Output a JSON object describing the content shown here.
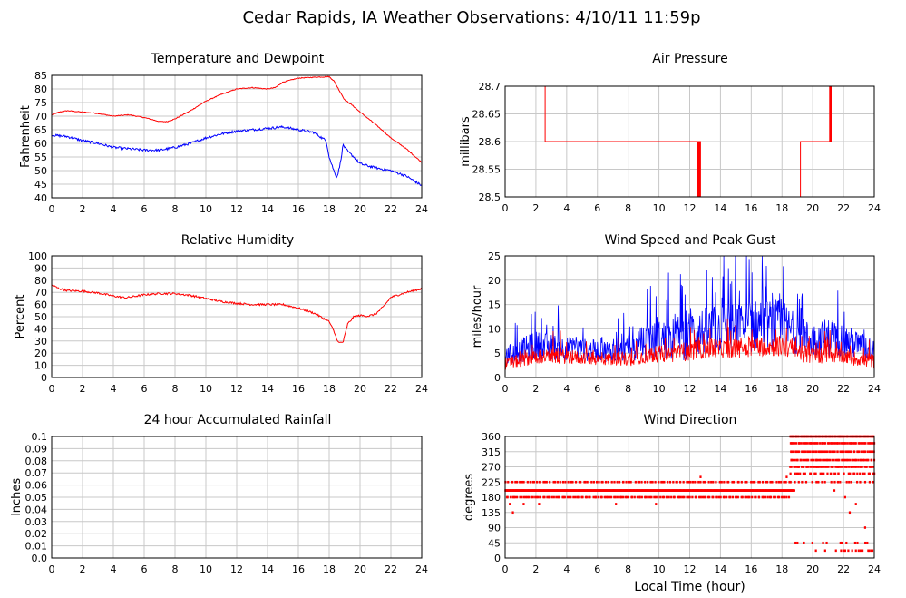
{
  "page": {
    "title": "Cedar Rapids, IA Weather Observations: 4/10/11 11:59p"
  },
  "colors": {
    "red": "#ff0000",
    "blue": "#0000ff",
    "grid": "#c8c8c8"
  },
  "chart_data": [
    {
      "id": "temp",
      "type": "line",
      "title": "Temperature and Dewpoint",
      "xlabel": "",
      "ylabel": "Fahrenheit",
      "xlim": [
        0,
        24
      ],
      "ylim": [
        40,
        85
      ],
      "xticks": [
        "0",
        "2",
        "4",
        "6",
        "8",
        "10",
        "12",
        "14",
        "16",
        "18",
        "20",
        "22",
        "24"
      ],
      "yticks": [
        "40",
        "45",
        "50",
        "55",
        "60",
        "65",
        "70",
        "75",
        "80",
        "85"
      ],
      "grid": true,
      "series": [
        {
          "color": "#ff0000",
          "noise": 0.15,
          "x": [
            0,
            0.5,
            1,
            2,
            3,
            4,
            5,
            6,
            7,
            7.5,
            8,
            9,
            10,
            11,
            12,
            13,
            14,
            14.5,
            15,
            16,
            17,
            18,
            18.3,
            18.7,
            19,
            19.5,
            20,
            21,
            22,
            23,
            24
          ],
          "y": [
            70.5,
            71.5,
            72,
            71.5,
            71,
            70,
            70.5,
            69.5,
            68,
            68,
            69,
            72,
            75.5,
            78,
            80,
            80.5,
            80,
            80.5,
            82.5,
            84,
            84.3,
            84.5,
            83,
            79,
            76,
            74,
            71.5,
            67,
            62,
            58,
            53
          ]
        },
        {
          "color": "#0000ff",
          "noise": 0.45,
          "x": [
            0,
            1,
            2,
            3,
            4,
            5,
            6,
            7,
            8,
            9,
            10,
            11,
            12,
            13,
            14,
            15,
            16,
            17,
            17.8,
            18,
            18.3,
            18.5,
            18.7,
            18.9,
            19.2,
            19.6,
            20,
            21,
            22,
            23,
            24
          ],
          "y": [
            63,
            62.5,
            61,
            60,
            58.5,
            58,
            57.5,
            57.5,
            58.5,
            60,
            62,
            63.5,
            64.5,
            65,
            65.5,
            66,
            65,
            64,
            61,
            55,
            50,
            47.5,
            52,
            59.5,
            57,
            55,
            52.5,
            51,
            50,
            48,
            44.5
          ]
        }
      ]
    },
    {
      "id": "pressure",
      "type": "line",
      "title": "Air Pressure",
      "xlabel": "",
      "ylabel": "millibars",
      "xlim": [
        0,
        24
      ],
      "ylim": [
        28.5,
        28.7
      ],
      "xticks": [
        "0",
        "2",
        "4",
        "6",
        "8",
        "10",
        "12",
        "14",
        "16",
        "18",
        "20",
        "22",
        "24"
      ],
      "yticks": [
        "28.5",
        "28.55",
        "28.6",
        "28.65",
        "28.7"
      ],
      "grid": true,
      "series": [
        {
          "color": "#ff0000",
          "noise": 0,
          "x": [
            0,
            2.6,
            2.6,
            12.5,
            12.5,
            12.55,
            12.55,
            12.6,
            12.6,
            12.65,
            12.65,
            12.7,
            12.7,
            12.75,
            12.75,
            19.2,
            19.2,
            21.1,
            21.1,
            21.15,
            21.15,
            21.2,
            21.2,
            24
          ],
          "y": [
            28.7,
            28.7,
            28.6,
            28.6,
            28.5,
            28.5,
            28.6,
            28.6,
            28.5,
            28.5,
            28.6,
            28.6,
            28.5,
            28.5,
            28.5,
            28.5,
            28.6,
            28.6,
            28.7,
            28.7,
            28.6,
            28.6,
            28.7,
            28.7
          ]
        }
      ]
    },
    {
      "id": "humidity",
      "type": "line",
      "title": "Relative Humidity",
      "xlabel": "",
      "ylabel": "Percent",
      "xlim": [
        0,
        24
      ],
      "ylim": [
        0,
        100
      ],
      "xticks": [
        "0",
        "2",
        "4",
        "6",
        "8",
        "10",
        "12",
        "14",
        "16",
        "18",
        "20",
        "22",
        "24"
      ],
      "yticks": [
        "0",
        "10",
        "20",
        "30",
        "40",
        "50",
        "60",
        "70",
        "80",
        "90",
        "100"
      ],
      "grid": true,
      "series": [
        {
          "color": "#ff0000",
          "noise": 0.8,
          "x": [
            0,
            0.5,
            1,
            2,
            3,
            4,
            4.8,
            5.5,
            6,
            7,
            8,
            9,
            10,
            11,
            12,
            13,
            14,
            15,
            16,
            17,
            17.5,
            18,
            18.3,
            18.6,
            18.9,
            19.2,
            19.6,
            20,
            20.5,
            21,
            21.5,
            22,
            23,
            24
          ],
          "y": [
            76,
            73,
            71.5,
            71,
            69.5,
            67,
            65.5,
            67,
            68,
            69,
            69,
            67.5,
            65,
            62.5,
            61,
            60,
            60,
            60,
            57,
            53,
            49.5,
            46,
            38,
            28.5,
            29,
            44,
            50,
            51,
            50.5,
            52,
            58,
            66,
            70,
            73
          ]
        }
      ]
    },
    {
      "id": "wind",
      "type": "line",
      "title": "Wind Speed and Peak Gust",
      "xlabel": "",
      "ylabel": "miles/hour",
      "xlim": [
        0,
        24
      ],
      "ylim": [
        0,
        25
      ],
      "xticks": [
        "0",
        "2",
        "4",
        "6",
        "8",
        "10",
        "12",
        "14",
        "16",
        "18",
        "20",
        "22",
        "24"
      ],
      "yticks": [
        "0",
        "5",
        "10",
        "15",
        "20",
        "25"
      ],
      "grid": true,
      "series": [
        {
          "color": "#0000ff",
          "style": "spiky",
          "x": [
            0,
            2,
            4,
            6,
            8,
            9,
            10,
            11,
            12,
            13,
            14,
            15,
            16,
            17,
            18,
            19,
            20,
            21,
            22,
            23,
            24
          ],
          "base": [
            4,
            6,
            5.5,
            5,
            5,
            6,
            7,
            7,
            8,
            8.5,
            9,
            9,
            9.5,
            10,
            9.5,
            8,
            7,
            7.5,
            7,
            6,
            5
          ],
          "amp": [
            4,
            6,
            5,
            4.5,
            5,
            8,
            8,
            9,
            11,
            10,
            10,
            10.5,
            11,
            10,
            11,
            8,
            7,
            8,
            7,
            6,
            5
          ]
        },
        {
          "color": "#ff0000",
          "style": "spiky",
          "x": [
            0,
            2,
            4,
            6,
            8,
            9,
            10,
            11,
            12,
            13,
            14,
            15,
            16,
            17,
            18,
            19,
            20,
            21,
            22,
            23,
            24
          ],
          "base": [
            2.5,
            4,
            4,
            3.5,
            3.5,
            4,
            4.5,
            4.5,
            5,
            5.5,
            5.5,
            5.5,
            6,
            6,
            6,
            5,
            4,
            4.5,
            4,
            3.5,
            3
          ],
          "amp": [
            2.5,
            3,
            3,
            2.5,
            3,
            3,
            3.5,
            3.5,
            4,
            4,
            4,
            4,
            4.5,
            4,
            4.5,
            4,
            3.5,
            3.5,
            3,
            3,
            3
          ]
        }
      ]
    },
    {
      "id": "rain",
      "type": "line",
      "title": "24 hour Accumulated Rainfall",
      "xlabel": "",
      "ylabel": "Inches",
      "xlim": [
        0,
        24
      ],
      "ylim": [
        0,
        0.1
      ],
      "xticks": [
        "0",
        "2",
        "4",
        "6",
        "8",
        "10",
        "12",
        "14",
        "16",
        "18",
        "20",
        "22",
        "24"
      ],
      "yticks": [
        "0.0",
        "0.01",
        "0.02",
        "0.03",
        "0.04",
        "0.05",
        "0.06",
        "0.07",
        "0.08",
        "0.09",
        "0.1"
      ],
      "grid": true,
      "series": [
        {
          "color": "#ff0000",
          "noise": 0,
          "x": [
            0,
            24
          ],
          "y": [
            0,
            0
          ]
        }
      ]
    },
    {
      "id": "direction",
      "type": "scatter",
      "title": "Wind Direction",
      "xlabel": "Local Time (hour)",
      "ylabel": "degrees",
      "xlim": [
        0,
        24
      ],
      "ylim": [
        0,
        360
      ],
      "xticks": [
        "0",
        "2",
        "4",
        "6",
        "8",
        "10",
        "12",
        "14",
        "16",
        "18",
        "20",
        "22",
        "24"
      ],
      "yticks": [
        "0",
        "45",
        "90",
        "135",
        "180",
        "225",
        "270",
        "315",
        "360"
      ],
      "grid": true,
      "series": [
        {
          "color": "#ff0000",
          "bands": [
            {
              "x": [
                0,
                18.8
              ],
              "y": 200,
              "density": 30
            },
            {
              "x": [
                0,
                18.5
              ],
              "y": 180,
              "density": 8
            },
            {
              "x": [
                0,
                18.5
              ],
              "y": 225,
              "density": 6
            },
            {
              "x": [
                18.5,
                24
              ],
              "y": 360,
              "density": 14
            },
            {
              "x": [
                18.5,
                24
              ],
              "y": 340,
              "density": 10
            },
            {
              "x": [
                18.5,
                24
              ],
              "y": 315,
              "density": 10
            },
            {
              "x": [
                18.5,
                24
              ],
              "y": 290,
              "density": 10
            },
            {
              "x": [
                18.5,
                24
              ],
              "y": 270,
              "density": 10
            },
            {
              "x": [
                18.5,
                24
              ],
              "y": 250,
              "density": 6
            },
            {
              "x": [
                18.5,
                24
              ],
              "y": 225,
              "density": 4
            },
            {
              "x": [
                18.8,
                24
              ],
              "y": 45,
              "density": 2
            },
            {
              "x": [
                21.5,
                24
              ],
              "y": 22,
              "density": 5
            }
          ],
          "points": [
            [
              0.3,
              160
            ],
            [
              0.5,
              135
            ],
            [
              1.2,
              160
            ],
            [
              2.2,
              160
            ],
            [
              7.2,
              160
            ],
            [
              9.8,
              160
            ],
            [
              12.7,
              240
            ],
            [
              18.3,
              240
            ],
            [
              18.6,
              200
            ],
            [
              19.0,
              45
            ],
            [
              19.4,
              45
            ],
            [
              21.4,
              200
            ],
            [
              22.1,
              180
            ],
            [
              22.4,
              135
            ],
            [
              22.8,
              160
            ],
            [
              23.4,
              90
            ],
            [
              23.8,
              22
            ],
            [
              24.0,
              250
            ],
            [
              20.8,
              22
            ],
            [
              21.8,
              45
            ],
            [
              22.9,
              45
            ],
            [
              20.2,
              22
            ]
          ]
        }
      ]
    }
  ]
}
